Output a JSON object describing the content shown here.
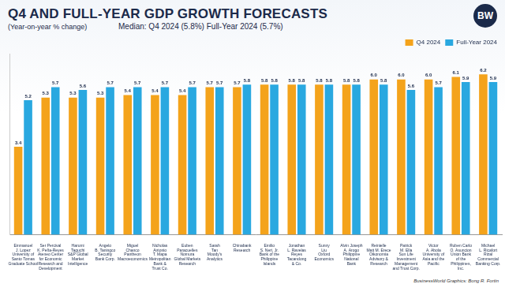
{
  "chart_data": {
    "type": "bar",
    "title": "Q4 AND FULL-YEAR GDP GROWTH FORECASTS",
    "subtitle": "(Year-on-year % change)",
    "median_note": "Median: Q4 2024 (5.8%) Full-Year 2024 (5.7%)",
    "logo": "BW",
    "credit": "BusinessWorld Graphics: Bong R. Fortin",
    "categories": [
      [
        "Emmanuel",
        "J. Lopez",
        "University of",
        "Santo Tomas",
        "Graduate School"
      ],
      [
        "Ser Percival",
        "K. Peña-Reyes",
        "Ateneo Center",
        "for Economic",
        "Research and",
        "Development"
      ],
      [
        "Harumi",
        "Taguchi",
        "S&P Global",
        "Market",
        "Intelligence"
      ],
      [
        "Angelo",
        "B. Taningco",
        "Security",
        "Bank Corp."
      ],
      [
        "Miguel",
        "Chanco",
        "Pantheon",
        "Macroeconomics"
      ],
      [
        "Nicholas",
        "Antonio",
        "T. Mapa",
        "Metropolitan",
        "Bank &",
        "Trust Co."
      ],
      [
        "Euben",
        "Paracuelles",
        "Nomura",
        "Global Markets",
        "Research"
      ],
      [
        "Sarah",
        "Tan",
        "Moody's",
        "Analytics"
      ],
      [
        "Chinabank",
        "Research"
      ],
      [
        "Emilio",
        "S. Neri, Jr.",
        "Bank of the",
        "Philippine",
        "Islands"
      ],
      [
        "Jonathan",
        "L. Ravelas",
        "Reyes",
        "Tacandong",
        "& Co."
      ],
      [
        "Sunny",
        "Liu",
        "Oxford",
        "Economics"
      ],
      [
        "Alvin Joseph",
        "A. Arogo",
        "Philippine",
        "National",
        "Bank"
      ],
      [
        "Reinielle",
        "Matt M. Erece",
        "Oikonomia",
        "Advisory &",
        "Research"
      ],
      [
        "Patrick",
        "M. Ella",
        "Sun Life",
        "Investment",
        "Management",
        "and Trust Corp."
      ],
      [
        "Victor",
        "A. Abola",
        "University of",
        "Asia and the",
        "Pacific"
      ],
      [
        "Ruben Carlo",
        "O. Asuncion",
        "Union Bank",
        "of the",
        "Philippines,",
        "Inc."
      ],
      [
        "Michael",
        "L. Ricafort",
        "Rizal",
        "Commercial",
        "Banking Corp."
      ]
    ],
    "series": [
      {
        "name": "Q4 2024",
        "color": "#f4a31b",
        "values": [
          3.4,
          5.3,
          5.3,
          5.3,
          5.4,
          5.4,
          5.4,
          5.7,
          5.7,
          5.8,
          5.8,
          5.8,
          5.8,
          6.0,
          6.0,
          6.0,
          6.1,
          6.2
        ],
        "value_labels": [
          "3.4",
          "5.3",
          "5.3",
          "5.3",
          "5.4",
          "5.4",
          "5.4",
          "5.7",
          "5.7",
          "5.8",
          "5.8",
          "5.8",
          "5.8",
          "6.0",
          "6.0",
          "6.0",
          "6.1",
          "6.2"
        ]
      },
      {
        "name": "Full-Year 2024",
        "color": "#29a8e0",
        "values": [
          5.2,
          5.7,
          5.6,
          5.7,
          5.7,
          5.7,
          5.7,
          5.7,
          5.8,
          5.8,
          5.8,
          5.8,
          5.8,
          5.8,
          5.6,
          5.7,
          5.9,
          5.9
        ],
        "value_labels": [
          "5.2",
          "5.7",
          "5.6",
          "5.7",
          "5.7",
          "5.7",
          "5.7",
          "5.7",
          "5.8",
          "5.8",
          "5.8",
          "5.8",
          "5.8",
          "5.8",
          "5.6",
          "5.7",
          "5.9",
          "5.9"
        ]
      }
    ],
    "ylim": [
      0,
      7
    ],
    "yticks": [],
    "grid": false,
    "legend": "top-right",
    "data_labels": true,
    "tick_labels": "x"
  }
}
